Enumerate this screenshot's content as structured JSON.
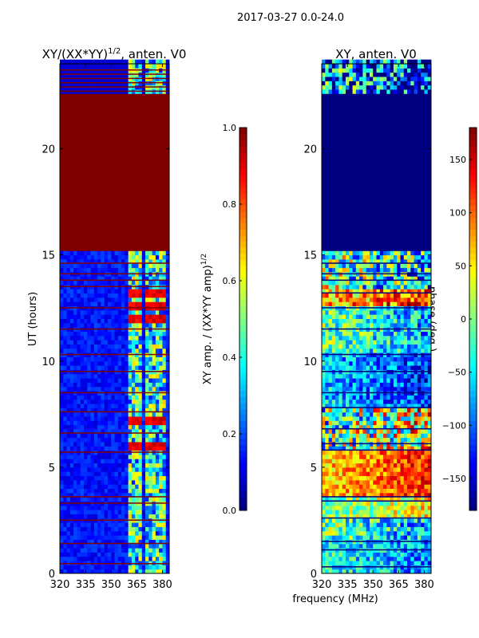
{
  "suptitle": "2017-03-27 0.0-24.0",
  "xlabel": "frequency (MHz)",
  "chart_data": [
    {
      "type": "heatmap",
      "title": "XY/(XX*YY)^1/2, anten. V0",
      "title_main": "XY/(XX*YY)",
      "title_sup": "1/2",
      "title_tail": ", anten. V0",
      "ylabel": "UT (hours)",
      "xlim": [
        320,
        384
      ],
      "ylim": [
        0,
        24
      ],
      "xticks": [
        "320",
        "335",
        "350",
        "365",
        "380"
      ],
      "xtick_values": [
        320,
        335,
        350,
        365,
        380
      ],
      "yticks": [
        "0",
        "5",
        "10",
        "15",
        "20"
      ],
      "ytick_values": [
        0,
        5,
        10,
        15,
        20
      ],
      "colorbar": {
        "label": "XY amp. / (XX*YY amp)^1/2",
        "label_main": "XY amp. / (XX*YY amp)",
        "label_sup": "1/2",
        "range": [
          0,
          1
        ],
        "ticks": [
          "0.0",
          "0.2",
          "0.4",
          "0.6",
          "0.8",
          "1.0"
        ],
        "tick_values": [
          0,
          0.2,
          0.4,
          0.6,
          0.8,
          1.0
        ],
        "cmap": "jet"
      },
      "base_value": 0.08,
      "active_freq_ranges": [
        [
          360.5,
          363.5
        ],
        [
          365,
          368
        ],
        [
          369.5,
          374
        ],
        [
          375,
          378.5
        ],
        [
          379,
          381
        ]
      ],
      "active_value": 0.45,
      "constant_bands": [
        [
          15.0,
          22.5,
          1.0
        ]
      ],
      "flag_lines": [
        0.45,
        1.4,
        2.5,
        3.3,
        3.6,
        5.7,
        6.6,
        7.6,
        8.5,
        9.5,
        10.3,
        11.5,
        12.5,
        13.5,
        13.8,
        14.1,
        14.6,
        22.7,
        22.9,
        23.1,
        23.3,
        23.5,
        23.7
      ],
      "hot_bands": [
        [
          5.9,
          6.1
        ],
        [
          7.0,
          7.4
        ],
        [
          11.8,
          12.0
        ],
        [
          12.4,
          12.6
        ],
        [
          12.9,
          13.2
        ]
      ]
    },
    {
      "type": "heatmap",
      "title": "XY, anten. V0",
      "xlim": [
        320,
        384
      ],
      "ylim": [
        0,
        24
      ],
      "xticks": [
        "320",
        "335",
        "350",
        "365",
        "380"
      ],
      "xtick_values": [
        320,
        335,
        350,
        365,
        380
      ],
      "yticks": [
        "0",
        "5",
        "10",
        "15",
        "20"
      ],
      "ytick_values": [
        0,
        5,
        10,
        15,
        20
      ],
      "colorbar": {
        "label": "phase (deg.)",
        "range": [
          -180,
          180
        ],
        "ticks": [
          "−150",
          "−100",
          "−50",
          "0",
          "50",
          "100",
          "150"
        ],
        "tick_values": [
          -150,
          -100,
          -50,
          0,
          50,
          100,
          150
        ],
        "cmap": "jet"
      },
      "constant_bands": [
        [
          15.0,
          22.5,
          -180
        ]
      ],
      "phase_segments": [
        {
          "t": [
            0,
            1.5
          ],
          "phase": -60,
          "spread": 60
        },
        {
          "t": [
            1.5,
            2.6
          ],
          "phase": -40,
          "spread": 80
        },
        {
          "t": [
            2.6,
            3.6
          ],
          "phase": 20,
          "spread": 60
        },
        {
          "t": [
            3.6,
            5.8
          ],
          "phase": 90,
          "spread": 50
        },
        {
          "t": [
            5.8,
            7.8
          ],
          "phase": 10,
          "spread": 130
        },
        {
          "t": [
            7.8,
            10.3
          ],
          "phase": -90,
          "spread": 60
        },
        {
          "t": [
            10.3,
            12.5
          ],
          "phase": -40,
          "spread": 70
        },
        {
          "t": [
            12.5,
            13.3
          ],
          "phase": 90,
          "spread": 80
        },
        {
          "t": [
            13.3,
            15.0
          ],
          "phase": -30,
          "spread": 120
        },
        {
          "t": [
            22.5,
            24
          ],
          "phase": -120,
          "spread": 150
        }
      ],
      "flag_lines": [
        0.3,
        1.1,
        1.5,
        2.6,
        3.4,
        3.6,
        5.8,
        6.1,
        6.8,
        7.8,
        8.5,
        9.5,
        10.3,
        11.5,
        12.5,
        13.2,
        13.8,
        14.1,
        14.6
      ]
    }
  ]
}
